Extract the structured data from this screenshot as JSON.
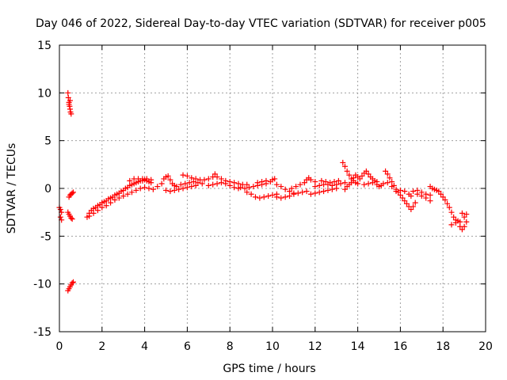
{
  "chart_data": {
    "type": "scatter",
    "title": "Day 046 of 2022, Sidereal Day-to-day VTEC variation (SDTVAR) for receiver p005",
    "xlabel": "GPS time / hours",
    "ylabel": "SDTVAR / TECUs",
    "xlim": [
      0,
      20
    ],
    "ylim": [
      -15,
      15
    ],
    "xticks": [
      0,
      2,
      4,
      6,
      8,
      10,
      12,
      14,
      16,
      18,
      20
    ],
    "xtick_labels": [
      "0",
      "2",
      "4",
      "6",
      "8",
      "10",
      "12",
      "14",
      "16",
      "18",
      "20"
    ],
    "yticks": [
      -15,
      -10,
      -5,
      0,
      5,
      10,
      15
    ],
    "ytick_labels": [
      "-15",
      "-10",
      "-5",
      "0",
      "5",
      "10",
      "15"
    ],
    "grid": true,
    "marker": "plus",
    "color": "#ff0000",
    "series": [
      {
        "name": "SDTVAR",
        "points": [
          [
            0.0,
            -2.0
          ],
          [
            0.05,
            -2.2
          ],
          [
            0.1,
            -2.5
          ],
          [
            0.05,
            -3.0
          ],
          [
            0.1,
            -3.3
          ],
          [
            0.4,
            10.0
          ],
          [
            0.42,
            9.5
          ],
          [
            0.45,
            9.0
          ],
          [
            0.48,
            8.6
          ],
          [
            0.5,
            8.3
          ],
          [
            0.52,
            8.0
          ],
          [
            0.55,
            7.8
          ],
          [
            0.45,
            8.8
          ],
          [
            0.5,
            9.2
          ],
          [
            0.4,
            -2.5
          ],
          [
            0.45,
            -2.7
          ],
          [
            0.5,
            -2.9
          ],
          [
            0.55,
            -3.1
          ],
          [
            0.6,
            -3.2
          ],
          [
            0.45,
            -0.9
          ],
          [
            0.5,
            -0.7
          ],
          [
            0.55,
            -0.6
          ],
          [
            0.6,
            -0.5
          ],
          [
            0.65,
            -0.4
          ],
          [
            0.4,
            -10.7
          ],
          [
            0.45,
            -10.5
          ],
          [
            0.5,
            -10.3
          ],
          [
            0.55,
            -10.1
          ],
          [
            0.6,
            -9.9
          ],
          [
            0.65,
            -9.8
          ],
          [
            1.3,
            -3.0
          ],
          [
            1.4,
            -2.6
          ],
          [
            1.5,
            -2.3
          ],
          [
            1.6,
            -2.1
          ],
          [
            1.7,
            -2.0
          ],
          [
            1.8,
            -1.8
          ],
          [
            1.9,
            -1.7
          ],
          [
            2.0,
            -1.5
          ],
          [
            2.1,
            -1.4
          ],
          [
            2.2,
            -1.3
          ],
          [
            2.3,
            -1.1
          ],
          [
            2.4,
            -1.0
          ],
          [
            2.5,
            -0.9
          ],
          [
            2.6,
            -0.7
          ],
          [
            2.7,
            -0.6
          ],
          [
            2.8,
            -0.5
          ],
          [
            2.9,
            -0.3
          ],
          [
            3.0,
            -0.2
          ],
          [
            3.1,
            0.0
          ],
          [
            3.2,
            0.1
          ],
          [
            3.3,
            0.3
          ],
          [
            3.4,
            0.4
          ],
          [
            3.5,
            0.5
          ],
          [
            3.6,
            0.6
          ],
          [
            3.7,
            0.7
          ],
          [
            3.8,
            0.8
          ],
          [
            3.9,
            0.8
          ],
          [
            4.0,
            0.9
          ],
          [
            4.1,
            0.8
          ],
          [
            4.2,
            0.7
          ],
          [
            4.3,
            0.6
          ],
          [
            1.4,
            -2.9
          ],
          [
            1.6,
            -2.6
          ],
          [
            1.8,
            -2.3
          ],
          [
            2.0,
            -2.0
          ],
          [
            2.2,
            -1.8
          ],
          [
            2.4,
            -1.5
          ],
          [
            2.6,
            -1.2
          ],
          [
            2.8,
            -1.0
          ],
          [
            3.0,
            -0.8
          ],
          [
            3.2,
            -0.6
          ],
          [
            3.4,
            -0.4
          ],
          [
            3.6,
            -0.2
          ],
          [
            3.8,
            0.0
          ],
          [
            4.0,
            0.1
          ],
          [
            4.2,
            0.0
          ],
          [
            4.4,
            -0.1
          ],
          [
            3.3,
            0.8
          ],
          [
            3.5,
            1.0
          ],
          [
            3.7,
            1.0
          ],
          [
            3.9,
            1.0
          ],
          [
            4.1,
            1.0
          ],
          [
            4.3,
            0.9
          ],
          [
            4.6,
            0.2
          ],
          [
            4.8,
            0.5
          ],
          [
            4.9,
            1.0
          ],
          [
            5.0,
            1.2
          ],
          [
            5.1,
            1.3
          ],
          [
            5.2,
            0.9
          ],
          [
            5.3,
            0.5
          ],
          [
            5.4,
            0.3
          ],
          [
            5.0,
            -0.2
          ],
          [
            5.2,
            -0.3
          ],
          [
            5.4,
            -0.2
          ],
          [
            5.6,
            -0.1
          ],
          [
            5.8,
            0.0
          ],
          [
            6.0,
            0.1
          ],
          [
            6.2,
            0.2
          ],
          [
            6.4,
            0.3
          ],
          [
            5.5,
            0.2
          ],
          [
            5.7,
            0.4
          ],
          [
            5.9,
            0.5
          ],
          [
            6.1,
            0.6
          ],
          [
            6.3,
            0.7
          ],
          [
            6.5,
            0.6
          ],
          [
            6.7,
            0.5
          ],
          [
            5.8,
            1.4
          ],
          [
            6.0,
            1.3
          ],
          [
            6.2,
            1.1
          ],
          [
            6.4,
            1.0
          ],
          [
            6.6,
            0.9
          ],
          [
            6.8,
            0.9
          ],
          [
            7.0,
            1.0
          ],
          [
            7.2,
            1.2
          ],
          [
            7.3,
            1.5
          ],
          [
            7.0,
            0.3
          ],
          [
            7.2,
            0.4
          ],
          [
            7.4,
            0.5
          ],
          [
            7.6,
            0.6
          ],
          [
            7.8,
            0.5
          ],
          [
            8.0,
            0.3
          ],
          [
            8.2,
            0.1
          ],
          [
            8.4,
            0.0
          ],
          [
            7.4,
            1.2
          ],
          [
            7.6,
            1.0
          ],
          [
            7.8,
            0.8
          ],
          [
            8.0,
            0.7
          ],
          [
            8.2,
            0.6
          ],
          [
            8.4,
            0.5
          ],
          [
            8.6,
            0.4
          ],
          [
            8.8,
            0.4
          ],
          [
            8.5,
            0.1
          ],
          [
            8.7,
            0.0
          ],
          [
            8.9,
            0.1
          ],
          [
            9.1,
            0.2
          ],
          [
            9.3,
            0.3
          ],
          [
            9.5,
            0.4
          ],
          [
            9.7,
            0.5
          ],
          [
            9.9,
            0.7
          ],
          [
            10.0,
            0.9
          ],
          [
            10.1,
            1.0
          ],
          [
            8.8,
            -0.4
          ],
          [
            9.0,
            -0.6
          ],
          [
            9.2,
            -0.9
          ],
          [
            9.4,
            -1.0
          ],
          [
            9.6,
            -0.9
          ],
          [
            9.8,
            -0.8
          ],
          [
            10.0,
            -0.7
          ],
          [
            10.2,
            -0.6
          ],
          [
            9.3,
            0.6
          ],
          [
            9.5,
            0.7
          ],
          [
            9.7,
            0.8
          ],
          [
            10.2,
            0.4
          ],
          [
            10.4,
            0.2
          ],
          [
            10.6,
            -0.1
          ],
          [
            10.8,
            -0.3
          ],
          [
            11.0,
            -0.5
          ],
          [
            10.2,
            -0.9
          ],
          [
            10.4,
            -1.0
          ],
          [
            10.6,
            -0.9
          ],
          [
            10.8,
            -0.8
          ],
          [
            11.0,
            -0.6
          ],
          [
            11.2,
            -0.5
          ],
          [
            11.4,
            -0.4
          ],
          [
            11.6,
            -0.3
          ],
          [
            10.9,
            0.0
          ],
          [
            11.1,
            0.2
          ],
          [
            11.3,
            0.4
          ],
          [
            11.5,
            0.6
          ],
          [
            11.6,
            0.9
          ],
          [
            11.7,
            1.1
          ],
          [
            11.8,
            0.9
          ],
          [
            12.0,
            0.7
          ],
          [
            12.0,
            0.2
          ],
          [
            12.2,
            0.3
          ],
          [
            12.4,
            0.4
          ],
          [
            12.6,
            0.4
          ],
          [
            12.8,
            0.3
          ],
          [
            13.0,
            0.4
          ],
          [
            13.2,
            0.5
          ],
          [
            13.4,
            0.6
          ],
          [
            11.8,
            -0.6
          ],
          [
            12.0,
            -0.5
          ],
          [
            12.2,
            -0.4
          ],
          [
            12.4,
            -0.3
          ],
          [
            12.6,
            -0.2
          ],
          [
            12.8,
            -0.1
          ],
          [
            13.0,
            0.0
          ],
          [
            12.3,
            0.8
          ],
          [
            12.5,
            0.7
          ],
          [
            12.7,
            0.6
          ],
          [
            12.9,
            0.7
          ],
          [
            13.1,
            0.8
          ],
          [
            13.3,
            2.7
          ],
          [
            13.4,
            2.3
          ],
          [
            13.5,
            1.8
          ],
          [
            13.6,
            1.4
          ],
          [
            13.7,
            1.0
          ],
          [
            13.8,
            0.8
          ],
          [
            13.9,
            0.6
          ],
          [
            14.0,
            0.5
          ],
          [
            13.4,
            -0.1
          ],
          [
            13.5,
            0.2
          ],
          [
            13.6,
            0.4
          ],
          [
            13.7,
            0.6
          ],
          [
            13.8,
            1.1
          ],
          [
            13.9,
            1.4
          ],
          [
            14.0,
            1.2
          ],
          [
            14.1,
            1.0
          ],
          [
            14.2,
            1.3
          ],
          [
            14.3,
            1.6
          ],
          [
            14.4,
            1.8
          ],
          [
            14.5,
            1.5
          ],
          [
            14.6,
            1.2
          ],
          [
            14.7,
            1.0
          ],
          [
            14.8,
            0.8
          ],
          [
            14.9,
            0.7
          ],
          [
            14.3,
            0.4
          ],
          [
            14.5,
            0.5
          ],
          [
            14.7,
            0.6
          ],
          [
            14.9,
            0.4
          ],
          [
            15.0,
            0.2
          ],
          [
            15.1,
            0.3
          ],
          [
            15.2,
            0.5
          ],
          [
            15.3,
            1.8
          ],
          [
            15.4,
            1.5
          ],
          [
            15.5,
            1.1
          ],
          [
            15.6,
            0.7
          ],
          [
            15.7,
            0.3
          ],
          [
            15.8,
            -0.1
          ],
          [
            15.9,
            -0.4
          ],
          [
            16.0,
            -0.7
          ],
          [
            16.1,
            -1.0
          ],
          [
            16.2,
            -1.3
          ],
          [
            16.3,
            -1.6
          ],
          [
            16.4,
            -1.9
          ],
          [
            16.5,
            -2.2
          ],
          [
            16.6,
            -1.9
          ],
          [
            16.7,
            -1.5
          ],
          [
            15.4,
            0.6
          ],
          [
            15.6,
            0.2
          ],
          [
            15.8,
            -0.3
          ],
          [
            16.0,
            -0.2
          ],
          [
            16.2,
            -0.3
          ],
          [
            16.4,
            -0.6
          ],
          [
            16.5,
            -0.8
          ],
          [
            16.6,
            -0.3
          ],
          [
            16.8,
            -0.2
          ],
          [
            17.0,
            -0.4
          ],
          [
            17.2,
            -0.6
          ],
          [
            17.4,
            -0.7
          ],
          [
            16.8,
            -0.6
          ],
          [
            17.0,
            -0.8
          ],
          [
            17.2,
            -1.0
          ],
          [
            17.4,
            -1.3
          ],
          [
            17.4,
            0.2
          ],
          [
            17.5,
            0.0
          ],
          [
            17.6,
            -0.1
          ],
          [
            17.7,
            -0.2
          ],
          [
            17.8,
            -0.3
          ],
          [
            17.9,
            -0.6
          ],
          [
            18.0,
            -0.9
          ],
          [
            18.1,
            -1.2
          ],
          [
            18.2,
            -1.6
          ],
          [
            18.3,
            -2.0
          ],
          [
            18.4,
            -2.5
          ],
          [
            18.5,
            -3.0
          ],
          [
            18.6,
            -3.3
          ],
          [
            18.7,
            -3.4
          ],
          [
            18.8,
            -3.5
          ],
          [
            18.4,
            -3.8
          ],
          [
            18.6,
            -3.6
          ],
          [
            18.8,
            -4.0
          ],
          [
            18.9,
            -4.3
          ],
          [
            19.0,
            -4.0
          ],
          [
            19.1,
            -3.5
          ],
          [
            19.0,
            -3.0
          ],
          [
            19.1,
            -2.7
          ],
          [
            18.9,
            -2.6
          ]
        ]
      }
    ]
  }
}
